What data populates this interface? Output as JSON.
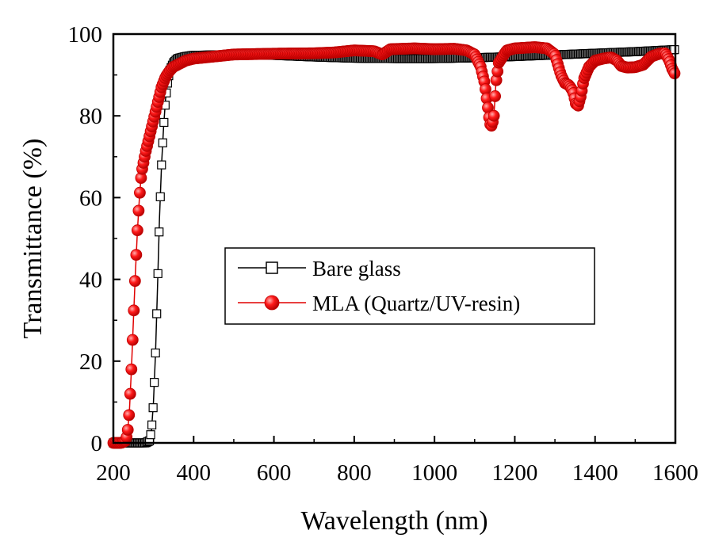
{
  "chart_data": {
    "type": "line",
    "xlabel": "Wavelength (nm)",
    "ylabel": "Transmittance (%)",
    "xlim": [
      200,
      1600
    ],
    "ylim": [
      0,
      100
    ],
    "x_ticks": [
      200,
      400,
      600,
      800,
      1000,
      1200,
      1400,
      1600
    ],
    "y_ticks": [
      0,
      20,
      40,
      60,
      80,
      100
    ],
    "x_tick_labels": [
      "200",
      "400",
      "600",
      "800",
      "1000",
      "1200",
      "1400",
      "1600"
    ],
    "y_tick_labels": [
      "0",
      "20",
      "40",
      "60",
      "80",
      "100"
    ],
    "grid": false,
    "legend_position": "center-right",
    "series": [
      {
        "name": "Bare glass",
        "color": "#000000",
        "marker": "hollow-square",
        "points": [
          [
            200,
            0
          ],
          [
            280,
            0
          ],
          [
            290,
            0.5
          ],
          [
            295,
            3
          ],
          [
            300,
            10
          ],
          [
            305,
            22
          ],
          [
            310,
            38
          ],
          [
            315,
            55
          ],
          [
            320,
            68
          ],
          [
            325,
            77
          ],
          [
            330,
            84
          ],
          [
            335,
            88
          ],
          [
            340,
            91
          ],
          [
            350,
            93
          ],
          [
            360,
            94
          ],
          [
            380,
            94.5
          ],
          [
            400,
            94.8
          ],
          [
            500,
            95
          ],
          [
            600,
            94.8
          ],
          [
            700,
            94.4
          ],
          [
            800,
            94.1
          ],
          [
            900,
            94
          ],
          [
            1000,
            94
          ],
          [
            1100,
            94.2
          ],
          [
            1200,
            94.5
          ],
          [
            1300,
            94.9
          ],
          [
            1400,
            95.3
          ],
          [
            1500,
            95.7
          ],
          [
            1600,
            96.2
          ]
        ]
      },
      {
        "name": "MLA (Quartz/UV-resin)",
        "color": "#e00000",
        "marker": "filled-circle",
        "points": [
          [
            200,
            0
          ],
          [
            220,
            0
          ],
          [
            230,
            0.5
          ],
          [
            235,
            2
          ],
          [
            240,
            8
          ],
          [
            245,
            18
          ],
          [
            250,
            30
          ],
          [
            255,
            42
          ],
          [
            260,
            52
          ],
          [
            265,
            60
          ],
          [
            270,
            66
          ],
          [
            280,
            71
          ],
          [
            290,
            75
          ],
          [
            300,
            79
          ],
          [
            310,
            83
          ],
          [
            320,
            87
          ],
          [
            330,
            89.5
          ],
          [
            340,
            91
          ],
          [
            350,
            92
          ],
          [
            360,
            92.5
          ],
          [
            380,
            93.5
          ],
          [
            400,
            94
          ],
          [
            450,
            94.5
          ],
          [
            500,
            95
          ],
          [
            600,
            95.2
          ],
          [
            700,
            95.3
          ],
          [
            750,
            95.5
          ],
          [
            800,
            96
          ],
          [
            850,
            95.8
          ],
          [
            870,
            95
          ],
          [
            890,
            96.3
          ],
          [
            950,
            96.5
          ],
          [
            1000,
            96.3
          ],
          [
            1050,
            96.4
          ],
          [
            1080,
            96
          ],
          [
            1100,
            95
          ],
          [
            1115,
            92
          ],
          [
            1125,
            88
          ],
          [
            1133,
            82
          ],
          [
            1138,
            78
          ],
          [
            1143,
            77.5
          ],
          [
            1148,
            80
          ],
          [
            1153,
            88
          ],
          [
            1160,
            93
          ],
          [
            1180,
            96
          ],
          [
            1200,
            96.5
          ],
          [
            1250,
            96.8
          ],
          [
            1280,
            96.5
          ],
          [
            1300,
            95
          ],
          [
            1315,
            90
          ],
          [
            1325,
            88
          ],
          [
            1335,
            87.5
          ],
          [
            1345,
            86
          ],
          [
            1352,
            83
          ],
          [
            1358,
            82.5
          ],
          [
            1365,
            85
          ],
          [
            1372,
            89
          ],
          [
            1385,
            92
          ],
          [
            1400,
            93.5
          ],
          [
            1420,
            94
          ],
          [
            1440,
            94.3
          ],
          [
            1455,
            93.5
          ],
          [
            1465,
            92.2
          ],
          [
            1480,
            91.8
          ],
          [
            1500,
            91.9
          ],
          [
            1520,
            92.5
          ],
          [
            1540,
            94.5
          ],
          [
            1560,
            95.2
          ],
          [
            1575,
            95.3
          ],
          [
            1585,
            93.5
          ],
          [
            1592,
            91.5
          ],
          [
            1600,
            90
          ]
        ]
      }
    ]
  }
}
